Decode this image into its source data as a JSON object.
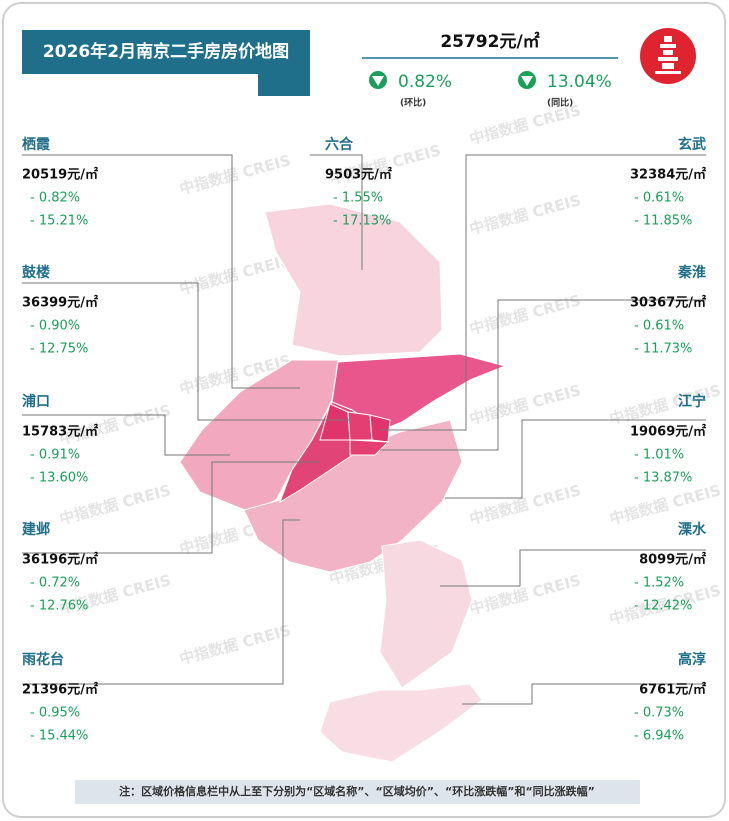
{
  "header": {
    "title": "2026年2月南京二手房房价地图",
    "avg_price": "25792元/㎡",
    "mom": "0.82%",
    "mom_label": "(环比)",
    "yoy": "13.04%",
    "yoy_label": "(同比)"
  },
  "districts": [
    {
      "name": "栖霞",
      "price": "20519元/㎡",
      "mom": "- 0.82%",
      "yoy": "- 15.21%"
    },
    {
      "name": "鼓楼",
      "price": "36399元/㎡",
      "mom": "- 0.90%",
      "yoy": "- 12.75%"
    },
    {
      "name": "浦口",
      "price": "15783元/㎡",
      "mom": "- 0.91%",
      "yoy": "- 13.60%"
    },
    {
      "name": "建邺",
      "price": "36196元/㎡",
      "mom": "- 0.72%",
      "yoy": "- 12.76%"
    },
    {
      "name": "雨花台",
      "price": "21396元/㎡",
      "mom": "- 0.95%",
      "yoy": "- 15.44%"
    },
    {
      "name": "六合",
      "price": "9503元/㎡",
      "mom": "- 1.55%",
      "yoy": "- 17.13%"
    },
    {
      "name": "玄武",
      "price": "32384元/㎡",
      "mom": "- 0.61%",
      "yoy": "- 11.85%"
    },
    {
      "name": "秦淮",
      "price": "30367元/㎡",
      "mom": "- 0.61%",
      "yoy": "- 11.73%"
    },
    {
      "name": "江宁",
      "price": "19069元/㎡",
      "mom": "- 1.01%",
      "yoy": "- 13.87%"
    },
    {
      "name": "溧水",
      "price": "8099元/㎡",
      "mom": "- 1.52%",
      "yoy": "- 12.42%"
    },
    {
      "name": "高淳",
      "price": "6761元/㎡",
      "mom": "- 0.73%",
      "yoy": "- 6.94%"
    }
  ],
  "watermark": "中指数据 CREIS",
  "note": "注：区域价格信息栏中从上至下分别为“区域名称”、“区域均价”、“环比涨跌幅”和“同比涨跌幅”"
}
